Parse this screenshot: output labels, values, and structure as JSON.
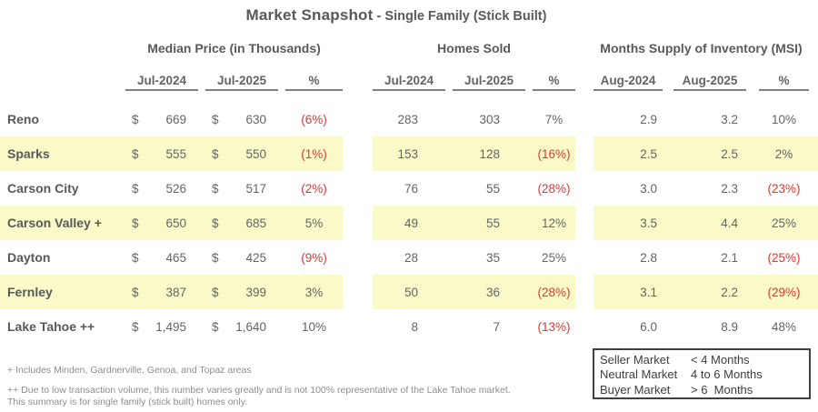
{
  "title": {
    "main": "Market Snapshot",
    "sub": " - Single Family (Stick Built)"
  },
  "currency": "$",
  "chart_data": {
    "type": "table",
    "title": "Market Snapshot - Single Family (Stick Built)",
    "groups": [
      {
        "label": "Median Price (in Thousands)",
        "columns": [
          "Jul-2024",
          "Jul-2025",
          "%"
        ]
      },
      {
        "label": "Homes Sold",
        "columns": [
          "Jul-2024",
          "Jul-2025",
          "%"
        ]
      },
      {
        "label": "Months Supply of Inventory (MSI)",
        "columns": [
          "Aug-2024",
          "Aug-2025",
          "%"
        ]
      }
    ],
    "rows": [
      {
        "name": "Reno",
        "highlight": false,
        "median_price": {
          "y2024": "669",
          "y2025": "630",
          "pct": "(6%)"
        },
        "homes_sold": {
          "y2024": "283",
          "y2025": "303",
          "pct": "7%"
        },
        "msi": {
          "y2024": "2.9",
          "y2025": "3.2",
          "pct": "10%"
        }
      },
      {
        "name": "Sparks",
        "highlight": true,
        "median_price": {
          "y2024": "555",
          "y2025": "550",
          "pct": "(1%)"
        },
        "homes_sold": {
          "y2024": "153",
          "y2025": "128",
          "pct": "(16%)"
        },
        "msi": {
          "y2024": "2.5",
          "y2025": "2.5",
          "pct": "2%"
        }
      },
      {
        "name": "Carson City",
        "highlight": false,
        "median_price": {
          "y2024": "526",
          "y2025": "517",
          "pct": "(2%)"
        },
        "homes_sold": {
          "y2024": "76",
          "y2025": "55",
          "pct": "(28%)"
        },
        "msi": {
          "y2024": "3.0",
          "y2025": "2.3",
          "pct": "(23%)"
        }
      },
      {
        "name": "Carson Valley +",
        "highlight": true,
        "median_price": {
          "y2024": "650",
          "y2025": "685",
          "pct": "5%"
        },
        "homes_sold": {
          "y2024": "49",
          "y2025": "55",
          "pct": "12%"
        },
        "msi": {
          "y2024": "3.5",
          "y2025": "4.4",
          "pct": "25%"
        }
      },
      {
        "name": "Dayton",
        "highlight": false,
        "median_price": {
          "y2024": "465",
          "y2025": "425",
          "pct": "(9%)"
        },
        "homes_sold": {
          "y2024": "28",
          "y2025": "35",
          "pct": "25%"
        },
        "msi": {
          "y2024": "2.8",
          "y2025": "2.1",
          "pct": "(25%)"
        }
      },
      {
        "name": "Fernley",
        "highlight": true,
        "median_price": {
          "y2024": "387",
          "y2025": "399",
          "pct": "3%"
        },
        "homes_sold": {
          "y2024": "50",
          "y2025": "36",
          "pct": "(28%)"
        },
        "msi": {
          "y2024": "3.1",
          "y2025": "2.2",
          "pct": "(29%)"
        }
      },
      {
        "name": "Lake Tahoe ++",
        "highlight": false,
        "median_price": {
          "y2024": "1,495",
          "y2025": "1,640",
          "pct": "10%"
        },
        "homes_sold": {
          "y2024": "8",
          "y2025": "7",
          "pct": "(13%)"
        },
        "msi": {
          "y2024": "6.0",
          "y2025": "8.9",
          "pct": "48%"
        }
      }
    ],
    "footnotes": [
      "+ Includes Minden, Gardnerville, Genoa, and Topaz areas",
      "++ Due to low transaction volume, this number varies greatly and is not 100% representative of the Lake Tahoe market.",
      "This summary is for single family (stick built) homes only."
    ],
    "legend": {
      "rows": [
        {
          "label": "Seller Market",
          "value": "< 4 Months"
        },
        {
          "label": "Neutral Market",
          "value": "4 to 6 Months"
        },
        {
          "label": "Buyer Market",
          "value": "> 6  Months"
        }
      ]
    }
  },
  "colors": {
    "highlight_yellow": "#FAFAC8",
    "negative_red": "#E5342E",
    "text_gray": "#58595B"
  }
}
